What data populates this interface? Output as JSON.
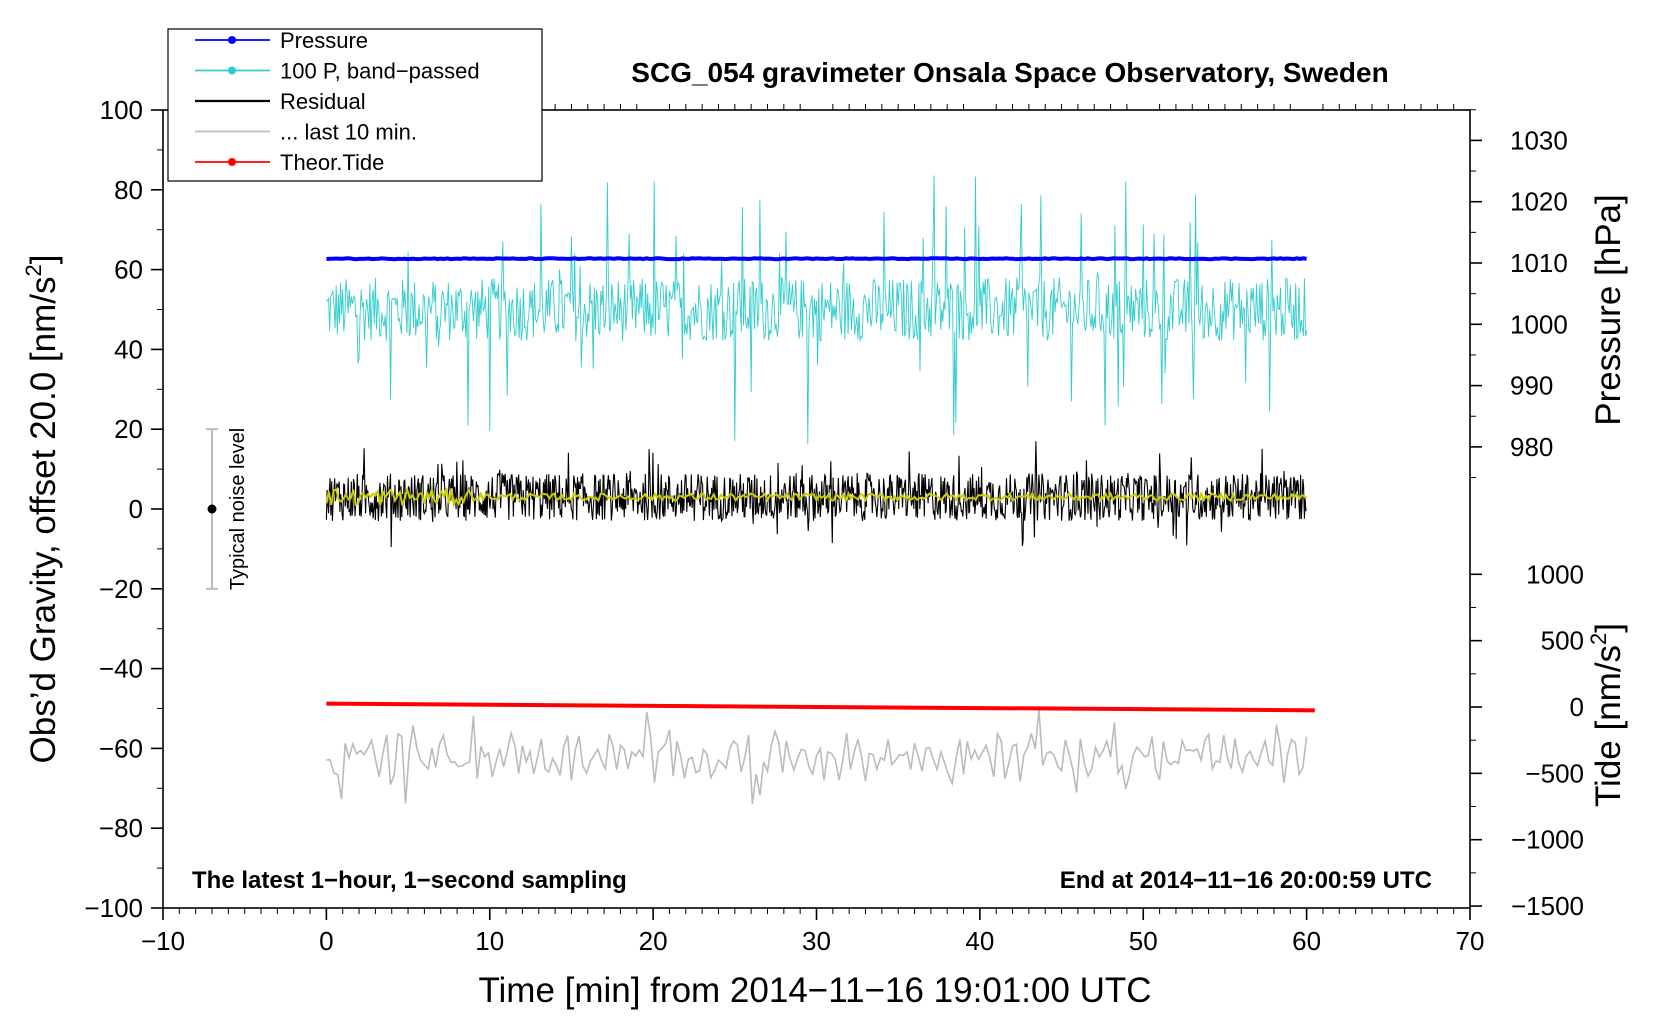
{
  "chart_data": {
    "type": "line",
    "title": "SCG_054 gravimeter Onsala Space Observatory, Sweden",
    "xlabel": "Time [min] from 2014−11−16 19:01:00 UTC",
    "ylabel_left": "Obs’d Gravity, offset 20.0 [nm/s",
    "ylabel_left_sup": "2",
    "ylabel_left_tail": "]",
    "ylabel_right_pressure": "Pressure [hPa]",
    "ylabel_right_tide": "Tide [nm/s",
    "ylabel_right_tide_sup": "2",
    "ylabel_right_tide_tail": "]",
    "note_left": "The latest 1−hour, 1−second sampling",
    "note_right": "End at 2014−11−16 20:00:59 UTC",
    "noise_label": "Typical noise level",
    "xlim": [
      -10,
      70
    ],
    "ylim": [
      -100,
      100
    ],
    "pressure_lim": [
      966,
      1035
    ],
    "tide_lim": [
      -1500,
      1500
    ],
    "x_ticks": [
      -10,
      0,
      10,
      20,
      30,
      40,
      50,
      60,
      70
    ],
    "x_tick_labels": [
      "−10",
      "0",
      "10",
      "20",
      "30",
      "40",
      "50",
      "60",
      "70"
    ],
    "y_ticks": [
      -100,
      -80,
      -60,
      -40,
      -20,
      0,
      20,
      40,
      60,
      80,
      100
    ],
    "y_tick_labels": [
      "−100",
      "−80",
      "−60",
      "−40",
      "−20",
      "0",
      "20",
      "40",
      "60",
      "80",
      "100"
    ],
    "pressure_ticks": [
      980,
      990,
      1000,
      1010,
      1020,
      1030
    ],
    "pressure_tick_labels": [
      "980",
      "990",
      "1000",
      "1010",
      "1020",
      "1030"
    ],
    "tide_ticks": [
      -1500,
      -1000,
      -500,
      0,
      500,
      1000
    ],
    "tide_tick_labels": [
      "−1500",
      "−1000",
      "−500",
      "0",
      "500",
      "1000"
    ],
    "legend": [
      {
        "label": "Pressure",
        "color": "#0000ff",
        "marker": true
      },
      {
        "label": "100 P, band−passed",
        "color": "#33cccc",
        "marker": true
      },
      {
        "label": "Residual",
        "color": "#000000",
        "marker": false
      },
      {
        "label": "... last 10 min.",
        "color": "#bbbbbb",
        "marker": false
      },
      {
        "label": "Theor.Tide",
        "color": "#ff0000",
        "marker": true
      }
    ],
    "series": [
      {
        "name": "Pressure",
        "axis": "pressure",
        "color": "#0000ff",
        "x": [
          0,
          60
        ],
        "values": [
          1010.7,
          1010.7
        ]
      },
      {
        "name": "Theor.Tide",
        "axis": "tide",
        "color": "#ff0000",
        "x": [
          0,
          60.5
        ],
        "values": [
          25,
          -25
        ]
      },
      {
        "name": "100 P, band-passed",
        "axis": "gravity",
        "color": "#33cccc",
        "x_range": [
          0,
          60
        ],
        "mean": 50,
        "spread": 8
      },
      {
        "name": "Residual",
        "axis": "gravity",
        "color": "#000000",
        "x_range": [
          0,
          60
        ],
        "mean": 3,
        "spread": 6
      },
      {
        "name": "Residual smoothed",
        "axis": "gravity",
        "color": "#cccc00",
        "x_range": [
          0,
          60
        ],
        "mean": 3
      },
      {
        "name": "... last 10 min.",
        "axis": "gravity",
        "color": "#bbbbbb",
        "x_range": [
          0,
          60
        ],
        "mean": -62,
        "spread": 4
      }
    ],
    "noise_bar": {
      "x": -7,
      "low": -20,
      "high": 20,
      "center": 0
    }
  }
}
